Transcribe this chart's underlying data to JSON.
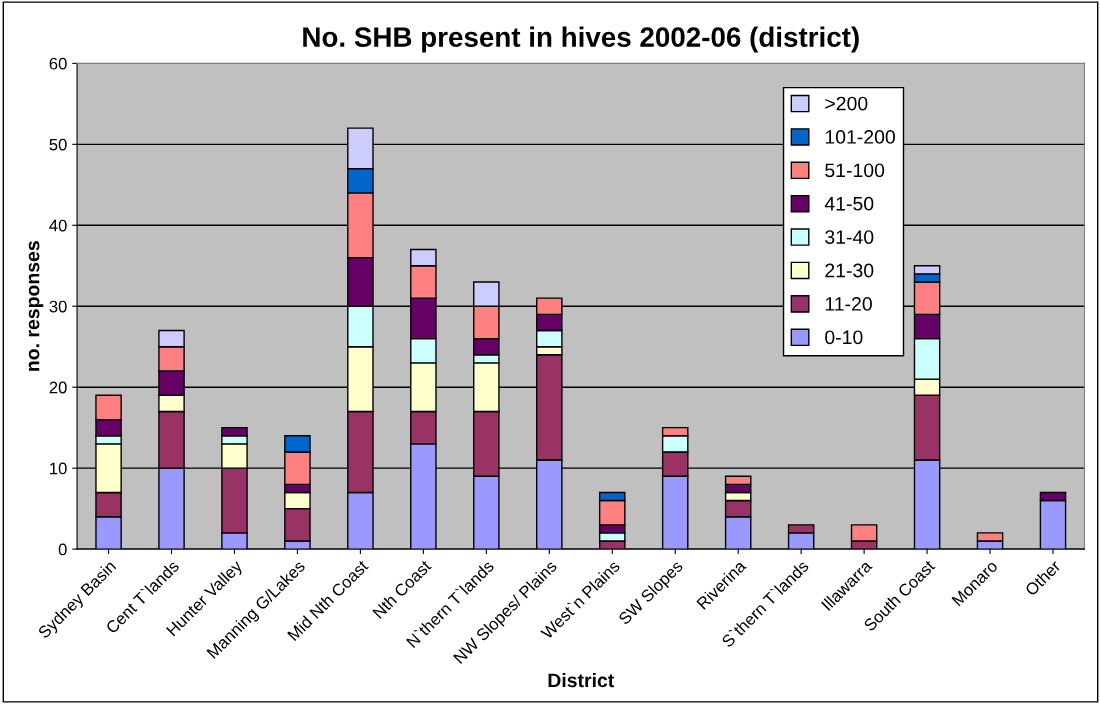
{
  "chart_data": {
    "type": "bar",
    "stacked": true,
    "title": "No. SHB present in hives 2002-06 (district)",
    "xlabel": "District",
    "ylabel": "no. responses",
    "categories": [
      "Sydney Basin",
      "Cent T`lands",
      "Hunter Valley",
      "Manning G/Lakes",
      "Mid Nth Coast",
      "Nth Coast",
      "N`thern T`lands",
      "NW Slopes/ Plains",
      "West`n Plains",
      "SW Slopes",
      "Riverina",
      "S`thern T`lands",
      "Illawarra",
      "South Coast",
      "Monaro",
      "Other"
    ],
    "series": [
      {
        "name": "0-10",
        "color": "#9999ff",
        "values": [
          4,
          10,
          2,
          1,
          7,
          13,
          9,
          11,
          0,
          9,
          4,
          2,
          0,
          11,
          1,
          6
        ]
      },
      {
        "name": "11-20",
        "color": "#993366",
        "values": [
          3,
          7,
          8,
          4,
          10,
          4,
          8,
          13,
          1,
          3,
          2,
          1,
          1,
          8,
          0,
          0
        ]
      },
      {
        "name": "21-30",
        "color": "#ffffcc",
        "values": [
          6,
          2,
          3,
          2,
          8,
          6,
          6,
          1,
          0,
          0,
          1,
          0,
          0,
          2,
          0,
          0
        ]
      },
      {
        "name": "31-40",
        "color": "#ccffff",
        "values": [
          1,
          0,
          1,
          0,
          5,
          3,
          1,
          2,
          1,
          2,
          0,
          0,
          0,
          5,
          0,
          0
        ]
      },
      {
        "name": "41-50",
        "color": "#660066",
        "values": [
          2,
          3,
          1,
          1,
          6,
          5,
          2,
          2,
          1,
          0,
          1,
          0,
          0,
          3,
          0,
          1
        ]
      },
      {
        "name": "51-100",
        "color": "#ff8080",
        "values": [
          3,
          3,
          0,
          4,
          8,
          4,
          4,
          2,
          3,
          1,
          1,
          0,
          2,
          4,
          1,
          0
        ]
      },
      {
        "name": "101-200",
        "color": "#0066cc",
        "values": [
          0,
          0,
          0,
          2,
          3,
          0,
          0,
          0,
          1,
          0,
          0,
          0,
          0,
          1,
          0,
          0
        ]
      },
      {
        "name": ">200",
        "color": "#ccccff",
        "values": [
          0,
          2,
          0,
          0,
          5,
          2,
          3,
          0,
          0,
          0,
          0,
          0,
          0,
          1,
          0,
          0
        ]
      }
    ],
    "ylim": [
      0,
      60
    ],
    "yticks": [
      0,
      10,
      20,
      30,
      40,
      50,
      60
    ],
    "grid": "y",
    "legend": "top right"
  }
}
